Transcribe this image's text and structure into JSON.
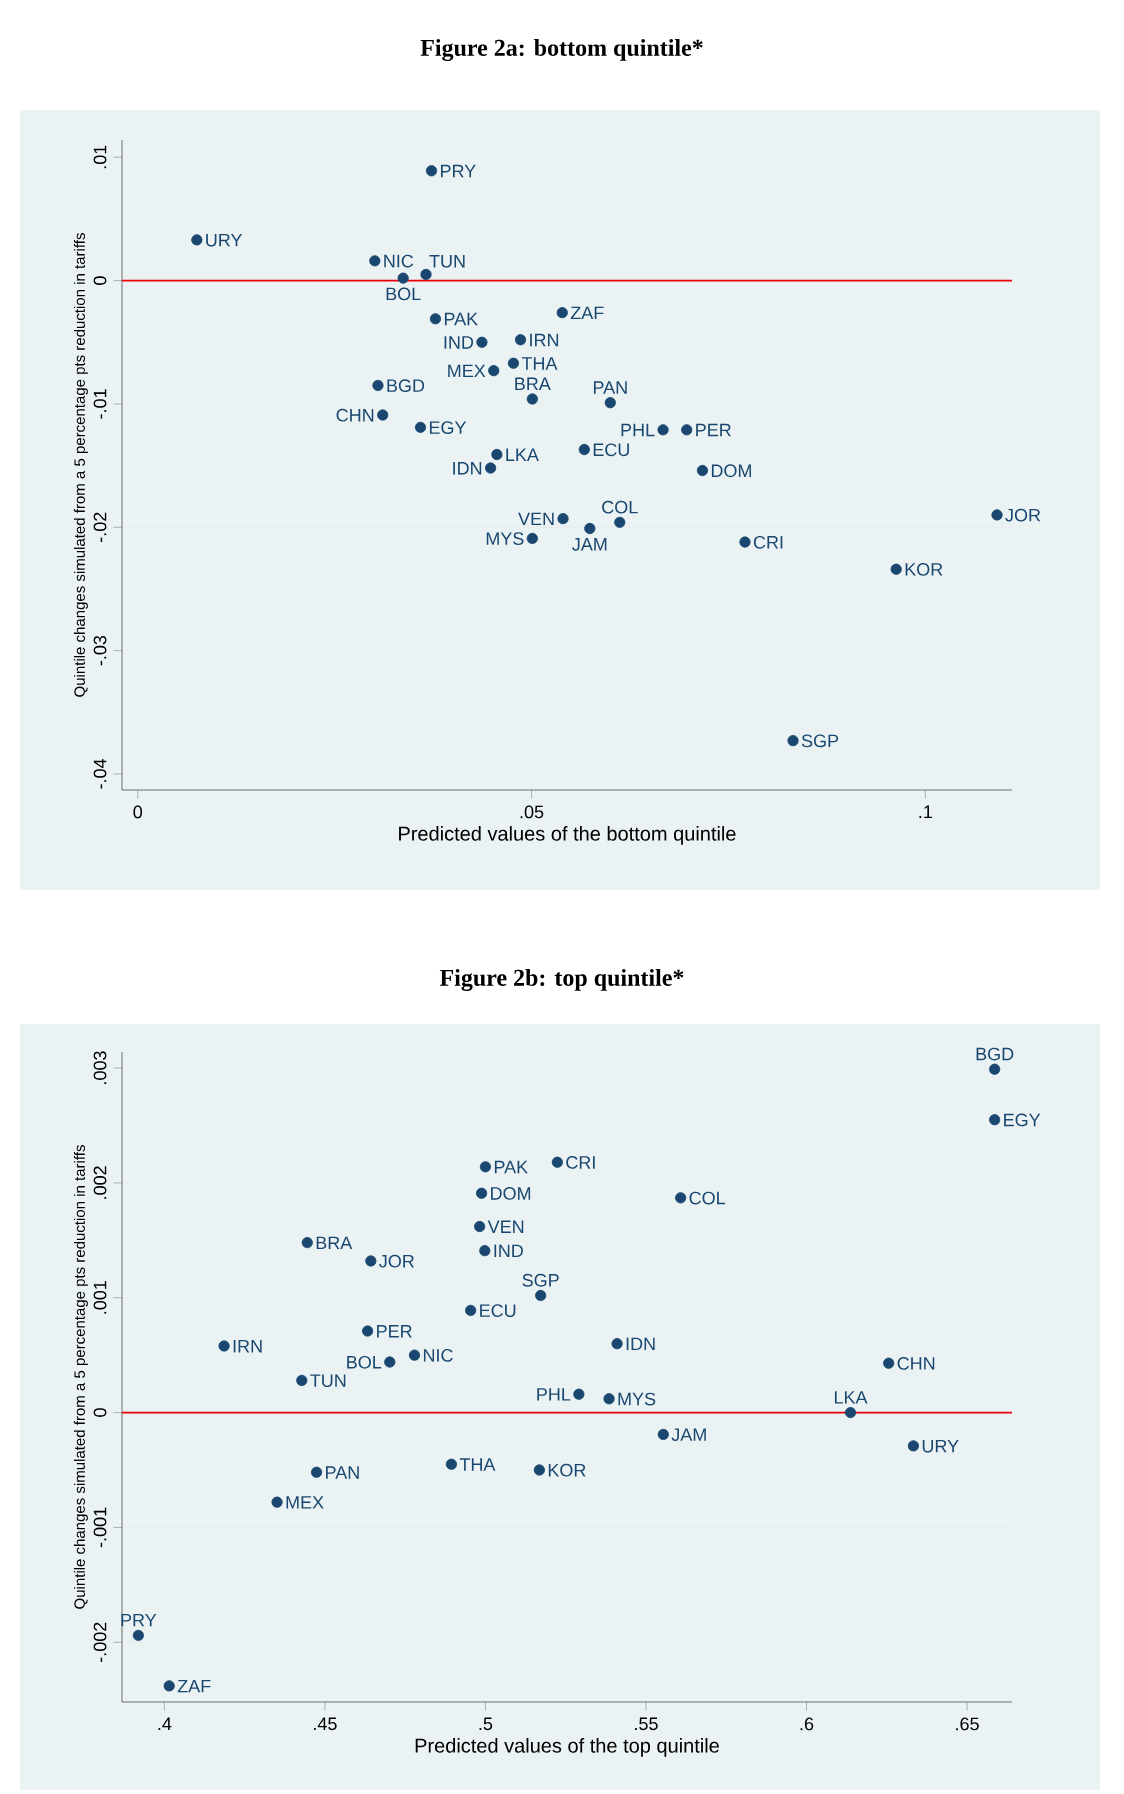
{
  "chart_data": [
    {
      "type": "scatter",
      "title": "Figure 2a: bottom quintile*",
      "xlabel": "Predicted values of the bottom quintile",
      "ylabel": "Quintile changes simulated from a 5 percentage pts reduction in tariffs",
      "xlim": [
        -0.002,
        0.111
      ],
      "ylim": [
        -0.0413,
        0.0114
      ],
      "xticks": [
        0,
        {
          "value": 0.05,
          "label": ".05"
        },
        {
          "value": 0.1,
          "label": ".1"
        }
      ],
      "yticks": [
        {
          "value": -0.04,
          "label": "-.04"
        },
        {
          "value": -0.03,
          "label": "-.03"
        },
        {
          "value": -0.02,
          "label": "-.02"
        },
        {
          "value": -0.01,
          "label": "-.01"
        },
        0,
        {
          "value": 0.01,
          "label": ".01"
        }
      ],
      "grid": "y",
      "marker": "circle",
      "ref_lines": [
        {
          "axis": "y",
          "value": 0,
          "color": "#e8000b"
        }
      ],
      "series": [
        {
          "color": "#1a476f",
          "x": [
            0.0373,
            0.0075,
            0.0301,
            0.0337,
            0.0366,
            0.0378,
            0.0539,
            0.0437,
            0.0486,
            0.0477,
            0.0452,
            0.0305,
            0.0501,
            0.06,
            0.0311,
            0.0359,
            0.0667,
            0.0697,
            0.0456,
            0.0567,
            0.0448,
            0.0717,
            0.054,
            0.0612,
            0.0574,
            0.0501,
            0.0771,
            0.1091,
            0.0963,
            0.0832
          ],
          "values": [
            0.0089,
            0.0033,
            0.0016,
            0.0002,
            0.0005,
            -0.0031,
            -0.0026,
            -0.005,
            -0.0048,
            -0.0067,
            -0.0073,
            -0.0085,
            -0.0096,
            -0.0099,
            -0.0109,
            -0.0119,
            -0.0121,
            -0.0121,
            -0.0141,
            -0.0137,
            -0.0152,
            -0.0154,
            -0.0193,
            -0.0196,
            -0.0201,
            -0.0209,
            -0.0212,
            -0.019,
            -0.0234,
            -0.0373
          ],
          "value_labels": [
            "PRY",
            "URY",
            "NIC",
            "BOL",
            "TUN",
            "PAK",
            "ZAF",
            "IND",
            "IRN",
            "THA",
            "MEX",
            "BGD",
            "BRA",
            "PAN",
            "CHN",
            "EGY",
            "PHL",
            "PER",
            "LKA",
            "ECU",
            "IDN",
            "DOM",
            "VEN",
            "COL",
            "JAM",
            "MYS",
            "CRI",
            "JOR",
            "KOR",
            "SGP"
          ]
        }
      ]
    },
    {
      "type": "scatter",
      "title": "Figure 2b: top quintile*",
      "xlabel": "Predicted values of the top quintile",
      "ylabel": "Quintile changes simulated from a 5 percentage pts reduction in tariffs",
      "xlim": [
        0.3868,
        0.664
      ],
      "ylim": [
        -0.00252,
        0.00314
      ],
      "xticks": [
        {
          "value": 0.4,
          "label": ".4"
        },
        {
          "value": 0.45,
          "label": ".45"
        },
        {
          "value": 0.5,
          "label": ".5"
        },
        {
          "value": 0.55,
          "label": ".55"
        },
        {
          "value": 0.6,
          "label": ".6"
        },
        {
          "value": 0.65,
          "label": ".65"
        }
      ],
      "yticks": [
        {
          "value": -0.002,
          "label": "-.002"
        },
        {
          "value": -0.001,
          "label": "-.001"
        },
        0,
        {
          "value": 0.001,
          "label": ".001"
        },
        {
          "value": 0.002,
          "label": ".002"
        },
        {
          "value": 0.003,
          "label": ".003"
        }
      ],
      "grid": "y",
      "marker": "circle",
      "ref_lines": [
        {
          "axis": "y",
          "value": 0,
          "color": "#e8000b"
        }
      ],
      "series": [
        {
          "color": "#1a476f",
          "x": [
            0.6586,
            0.6586,
            0.5,
            0.5224,
            0.4988,
            0.5608,
            0.4982,
            0.4445,
            0.4643,
            0.4998,
            0.5172,
            0.4954,
            0.4186,
            0.4633,
            0.541,
            0.4779,
            0.4702,
            0.6256,
            0.4428,
            0.5291,
            0.5385,
            0.6137,
            0.5554,
            0.6333,
            0.4474,
            0.4894,
            0.5168,
            0.4351,
            0.3919,
            0.4015
          ],
          "values": [
            0.00299,
            0.00255,
            0.00214,
            0.00218,
            0.00191,
            0.00187,
            0.00162,
            0.00148,
            0.00132,
            0.00141,
            0.00102,
            0.00089,
            0.00058,
            0.00071,
            0.0006,
            0.0005,
            0.00044,
            0.00043,
            0.00028,
            0.00016,
            0.00012,
            0,
            -0.00019,
            -0.00029,
            -0.00052,
            -0.00045,
            -0.0005,
            -0.00078,
            -0.00194,
            -0.00238
          ],
          "value_labels": [
            "BGD",
            "EGY",
            "PAK",
            "CRI",
            "DOM",
            "COL",
            "VEN",
            "BRA",
            "JOR",
            "IND",
            "SGP",
            "ECU",
            "IRN",
            "PER",
            "IDN",
            "NIC",
            "BOL",
            "CHN",
            "TUN",
            "PHL",
            "MYS",
            "LKA",
            "JAM",
            "URY",
            "PAN",
            "THA",
            "KOR",
            "MEX",
            "PRY",
            "ZAF"
          ]
        }
      ]
    }
  ]
}
